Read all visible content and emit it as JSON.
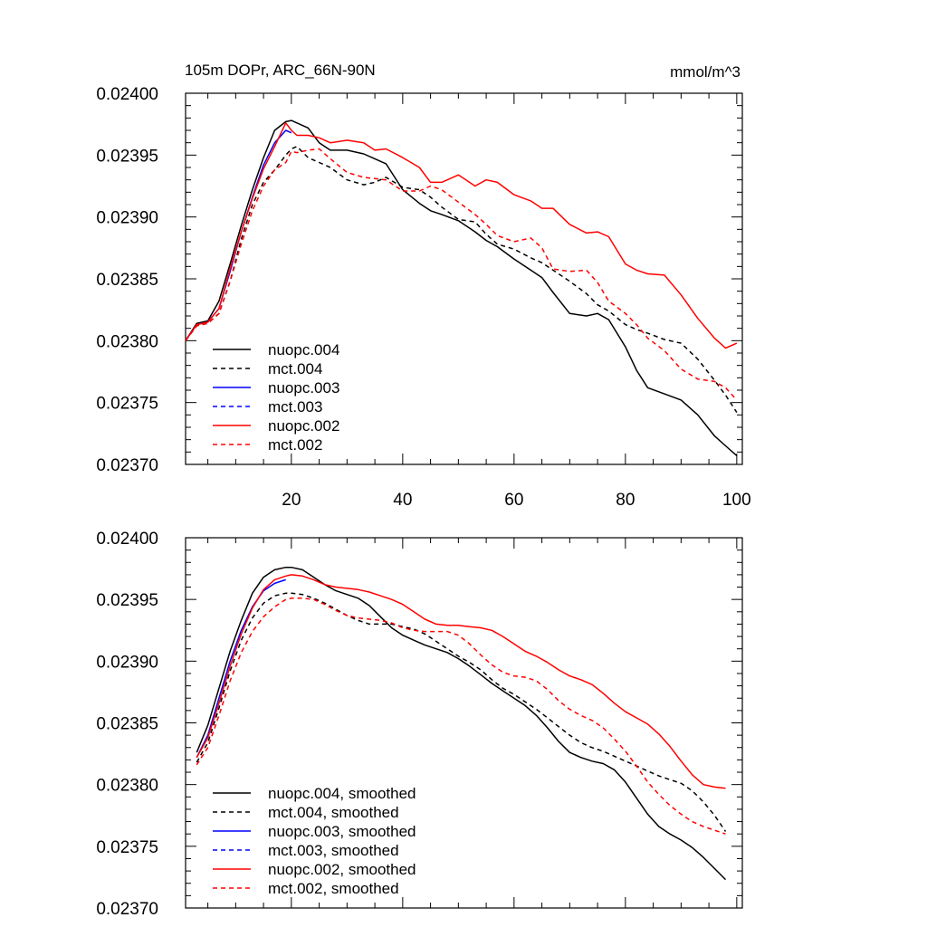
{
  "title_left": "105m DOPr, ARC_66N-90N",
  "title_right": "mmol/m^3",
  "chart_data": [
    {
      "type": "line",
      "title": "105m DOPr, ARC_66N-90N",
      "units": "mmol/m^3",
      "xlim": [
        1,
        101
      ],
      "ylim": [
        0.0237,
        0.024
      ],
      "xticks": [
        20,
        40,
        60,
        80,
        100
      ],
      "xtick_labels": [
        "20",
        "40",
        "60",
        "80",
        "100"
      ],
      "yticks": [
        0.0237,
        0.02375,
        0.0238,
        0.02385,
        0.0239,
        0.02395,
        0.024
      ],
      "ytick_labels": [
        "0.02370",
        "0.02375",
        "0.02380",
        "0.02385",
        "0.02390",
        "0.02395",
        "0.02400"
      ],
      "legend_position": "bottom-left",
      "series": [
        {
          "name": "nuopc.004",
          "color": "#000000",
          "dash": "solid",
          "x": [
            1,
            3,
            5,
            7,
            9,
            11,
            13,
            15,
            17,
            19,
            20,
            21,
            23,
            25,
            27,
            30,
            33,
            35,
            37,
            40,
            43,
            45,
            47,
            50,
            53,
            55,
            57,
            60,
            63,
            65,
            67,
            70,
            73,
            75,
            77,
            80,
            82,
            84,
            87,
            90,
            93,
            96,
            98,
            100
          ],
          "y": [
            0.0238,
            0.023814,
            0.023816,
            0.023832,
            0.023862,
            0.023893,
            0.023922,
            0.023948,
            0.02397,
            0.023977,
            0.023978,
            0.023976,
            0.023972,
            0.02396,
            0.023954,
            0.023954,
            0.023951,
            0.023947,
            0.023943,
            0.023922,
            0.023911,
            0.023905,
            0.023902,
            0.023897,
            0.023888,
            0.023881,
            0.023876,
            0.023866,
            0.023857,
            0.023851,
            0.023839,
            0.023822,
            0.02382,
            0.023822,
            0.023817,
            0.023795,
            0.023776,
            0.023762,
            0.023757,
            0.023752,
            0.02374,
            0.023723,
            0.023715,
            0.023707
          ]
        },
        {
          "name": "mct.004",
          "color": "#000000",
          "dash": "dashed",
          "x": [
            1,
            3,
            5,
            7,
            9,
            11,
            13,
            15,
            17,
            19,
            20,
            21,
            23,
            25,
            27,
            30,
            33,
            35,
            37,
            40,
            43,
            45,
            47,
            50,
            53,
            55,
            57,
            60,
            63,
            65,
            67,
            70,
            73,
            75,
            77,
            80,
            82,
            84,
            87,
            90,
            93,
            96,
            98,
            100
          ],
          "y": [
            0.0238,
            0.023812,
            0.023814,
            0.023822,
            0.023848,
            0.023882,
            0.02391,
            0.023928,
            0.023938,
            0.02395,
            0.023955,
            0.023957,
            0.023948,
            0.023944,
            0.02394,
            0.02393,
            0.023926,
            0.023928,
            0.023932,
            0.023924,
            0.023922,
            0.023916,
            0.023908,
            0.023898,
            0.023896,
            0.023886,
            0.023878,
            0.023874,
            0.023867,
            0.023863,
            0.023857,
            0.023848,
            0.023838,
            0.023829,
            0.023824,
            0.023813,
            0.023809,
            0.023806,
            0.023801,
            0.023798,
            0.023785,
            0.023768,
            0.023756,
            0.023742
          ]
        },
        {
          "name": "nuopc.003",
          "color": "#0000ff",
          "dash": "solid",
          "x": [
            1,
            3,
            5,
            7,
            9,
            11,
            13,
            15,
            17,
            19,
            20
          ],
          "y": [
            0.0238,
            0.023813,
            0.023815,
            0.023826,
            0.023856,
            0.023888,
            0.023916,
            0.023942,
            0.02396,
            0.02397,
            0.023968
          ]
        },
        {
          "name": "mct.003",
          "color": "#0000ff",
          "dash": "dashed",
          "x": [],
          "y": []
        },
        {
          "name": "nuopc.002",
          "color": "#ff0000",
          "dash": "solid",
          "x": [
            1,
            3,
            5,
            7,
            9,
            11,
            13,
            15,
            17,
            19,
            20,
            21,
            23,
            25,
            27,
            30,
            33,
            35,
            37,
            40,
            43,
            45,
            47,
            50,
            53,
            55,
            57,
            60,
            63,
            65,
            67,
            70,
            73,
            75,
            77,
            80,
            82,
            84,
            87,
            90,
            93,
            96,
            98,
            100
          ],
          "y": [
            0.0238,
            0.023813,
            0.023815,
            0.023826,
            0.023858,
            0.023888,
            0.023915,
            0.023939,
            0.023957,
            0.023976,
            0.02397,
            0.023966,
            0.023966,
            0.023964,
            0.02396,
            0.023962,
            0.02396,
            0.023954,
            0.023955,
            0.023948,
            0.02394,
            0.023928,
            0.023928,
            0.023934,
            0.023925,
            0.02393,
            0.023928,
            0.023918,
            0.023913,
            0.023907,
            0.023907,
            0.023894,
            0.023887,
            0.023888,
            0.023884,
            0.023862,
            0.023857,
            0.023854,
            0.023853,
            0.023837,
            0.023818,
            0.023802,
            0.023794,
            0.023798
          ]
        },
        {
          "name": "mct.002",
          "color": "#ff0000",
          "dash": "dashed",
          "x": [
            1,
            3,
            5,
            7,
            9,
            11,
            13,
            15,
            17,
            19,
            20,
            21,
            23,
            25,
            27,
            30,
            33,
            35,
            37,
            40,
            43,
            45,
            47,
            50,
            53,
            55,
            57,
            60,
            63,
            65,
            67,
            70,
            73,
            75,
            77,
            80,
            82,
            84,
            87,
            90,
            93,
            96,
            98,
            100
          ],
          "y": [
            0.0238,
            0.023812,
            0.023814,
            0.023822,
            0.023848,
            0.023878,
            0.023905,
            0.023925,
            0.023938,
            0.023944,
            0.023953,
            0.023952,
            0.023954,
            0.023955,
            0.023947,
            0.023936,
            0.023932,
            0.023931,
            0.02393,
            0.023921,
            0.023921,
            0.023925,
            0.023922,
            0.023912,
            0.023902,
            0.023894,
            0.023885,
            0.02388,
            0.023883,
            0.023875,
            0.023858,
            0.023856,
            0.023857,
            0.023847,
            0.023832,
            0.023822,
            0.023813,
            0.023802,
            0.023792,
            0.023777,
            0.023769,
            0.023767,
            0.023762,
            0.023752
          ]
        }
      ]
    },
    {
      "type": "line",
      "title": "",
      "units": "",
      "xlim": [
        1,
        101
      ],
      "ylim": [
        0.0237,
        0.024
      ],
      "xticks": [
        20,
        40,
        60,
        80,
        100
      ],
      "xtick_labels": [],
      "yticks": [
        0.0237,
        0.02375,
        0.0238,
        0.02385,
        0.0239,
        0.02395,
        0.024
      ],
      "ytick_labels": [
        "0.02370",
        "0.02375",
        "0.02380",
        "0.02385",
        "0.02390",
        "0.02395",
        "0.02400"
      ],
      "legend_position": "bottom-left",
      "series": [
        {
          "name": "nuopc.004, smoothed",
          "color": "#000000",
          "dash": "solid",
          "x": [
            3,
            5,
            7,
            9,
            11,
            13,
            15,
            17,
            19,
            20,
            22,
            24,
            26,
            28,
            30,
            32,
            34,
            36,
            38,
            40,
            42,
            44,
            46,
            48,
            50,
            52,
            54,
            56,
            58,
            60,
            62,
            64,
            66,
            68,
            70,
            72,
            74,
            76,
            78,
            80,
            82,
            84,
            86,
            88,
            90,
            92,
            94,
            96,
            98
          ],
          "y": [
            0.023826,
            0.023848,
            0.023878,
            0.023908,
            0.023933,
            0.023955,
            0.023968,
            0.023974,
            0.023976,
            0.023976,
            0.023974,
            0.023968,
            0.023962,
            0.023957,
            0.023954,
            0.023951,
            0.023945,
            0.023936,
            0.023927,
            0.023921,
            0.023917,
            0.023913,
            0.02391,
            0.023907,
            0.023902,
            0.023896,
            0.023889,
            0.023882,
            0.023876,
            0.02387,
            0.023864,
            0.023856,
            0.023846,
            0.023835,
            0.023826,
            0.023822,
            0.023819,
            0.023817,
            0.023812,
            0.023802,
            0.023789,
            0.023776,
            0.023766,
            0.02376,
            0.023755,
            0.023749,
            0.023741,
            0.023732,
            0.023723
          ]
        },
        {
          "name": "mct.004, smoothed",
          "color": "#000000",
          "dash": "dashed",
          "x": [
            3,
            5,
            7,
            9,
            11,
            13,
            15,
            17,
            19,
            20,
            22,
            24,
            26,
            28,
            30,
            32,
            34,
            36,
            38,
            40,
            42,
            44,
            46,
            48,
            50,
            52,
            54,
            56,
            58,
            60,
            62,
            64,
            66,
            68,
            70,
            72,
            74,
            76,
            78,
            80,
            82,
            84,
            86,
            88,
            90,
            92,
            94,
            96,
            98
          ],
          "y": [
            0.023818,
            0.023834,
            0.023862,
            0.023892,
            0.023917,
            0.023935,
            0.023947,
            0.023953,
            0.023955,
            0.023955,
            0.023954,
            0.023951,
            0.023947,
            0.023942,
            0.023937,
            0.023933,
            0.02393,
            0.02393,
            0.02393,
            0.023928,
            0.023926,
            0.023922,
            0.023916,
            0.02391,
            0.023904,
            0.023899,
            0.023893,
            0.023885,
            0.023878,
            0.023873,
            0.023867,
            0.023861,
            0.023854,
            0.023847,
            0.02384,
            0.023834,
            0.02383,
            0.023827,
            0.023823,
            0.023819,
            0.023815,
            0.023811,
            0.023807,
            0.023804,
            0.023801,
            0.023795,
            0.023786,
            0.023775,
            0.023762
          ]
        },
        {
          "name": "nuopc.003, smoothed",
          "color": "#0000ff",
          "dash": "solid",
          "x": [
            3,
            5,
            7,
            9,
            11,
            13,
            15,
            17,
            19
          ],
          "y": [
            0.023822,
            0.02384,
            0.02387,
            0.0239,
            0.023925,
            0.023944,
            0.023957,
            0.023963,
            0.023966
          ]
        },
        {
          "name": "mct.003, smoothed",
          "color": "#0000ff",
          "dash": "dashed",
          "x": [],
          "y": []
        },
        {
          "name": "nuopc.002, smoothed",
          "color": "#ff0000",
          "dash": "solid",
          "x": [
            3,
            5,
            7,
            9,
            11,
            13,
            15,
            17,
            19,
            20,
            22,
            24,
            26,
            28,
            30,
            32,
            34,
            36,
            38,
            40,
            42,
            44,
            46,
            48,
            50,
            52,
            54,
            56,
            58,
            60,
            62,
            64,
            66,
            68,
            70,
            72,
            74,
            76,
            78,
            80,
            82,
            84,
            86,
            88,
            90,
            92,
            94,
            96,
            98
          ],
          "y": [
            0.023822,
            0.023838,
            0.023866,
            0.023896,
            0.023922,
            0.023943,
            0.023958,
            0.023966,
            0.023969,
            0.02397,
            0.023969,
            0.023966,
            0.023962,
            0.02396,
            0.023959,
            0.023958,
            0.023956,
            0.023953,
            0.02395,
            0.023946,
            0.02394,
            0.023934,
            0.02393,
            0.023929,
            0.023929,
            0.023928,
            0.023927,
            0.023925,
            0.02392,
            0.023914,
            0.023908,
            0.023904,
            0.023899,
            0.023893,
            0.023888,
            0.023885,
            0.023881,
            0.023874,
            0.023866,
            0.023859,
            0.023854,
            0.023849,
            0.023841,
            0.023831,
            0.023819,
            0.023808,
            0.0238,
            0.023798,
            0.023797
          ]
        },
        {
          "name": "mct.002, smoothed",
          "color": "#ff0000",
          "dash": "dashed",
          "x": [
            3,
            5,
            7,
            9,
            11,
            13,
            15,
            17,
            19,
            20,
            22,
            24,
            26,
            28,
            30,
            32,
            34,
            36,
            38,
            40,
            42,
            44,
            46,
            48,
            50,
            52,
            54,
            56,
            58,
            60,
            62,
            64,
            66,
            68,
            70,
            72,
            74,
            76,
            78,
            80,
            82,
            84,
            86,
            88,
            90,
            92,
            94,
            96,
            98
          ],
          "y": [
            0.023816,
            0.02383,
            0.023856,
            0.023884,
            0.023907,
            0.023924,
            0.023936,
            0.023944,
            0.02395,
            0.023951,
            0.023951,
            0.02395,
            0.023946,
            0.023941,
            0.023937,
            0.023935,
            0.023934,
            0.023933,
            0.023931,
            0.023927,
            0.023925,
            0.023924,
            0.023924,
            0.023924,
            0.023921,
            0.023914,
            0.023905,
            0.023897,
            0.023891,
            0.023888,
            0.023887,
            0.023884,
            0.023877,
            0.023868,
            0.023861,
            0.023856,
            0.023852,
            0.023846,
            0.023837,
            0.023827,
            0.023815,
            0.023802,
            0.023792,
            0.023783,
            0.023776,
            0.02377,
            0.023766,
            0.023763,
            0.02376
          ]
        }
      ]
    }
  ]
}
